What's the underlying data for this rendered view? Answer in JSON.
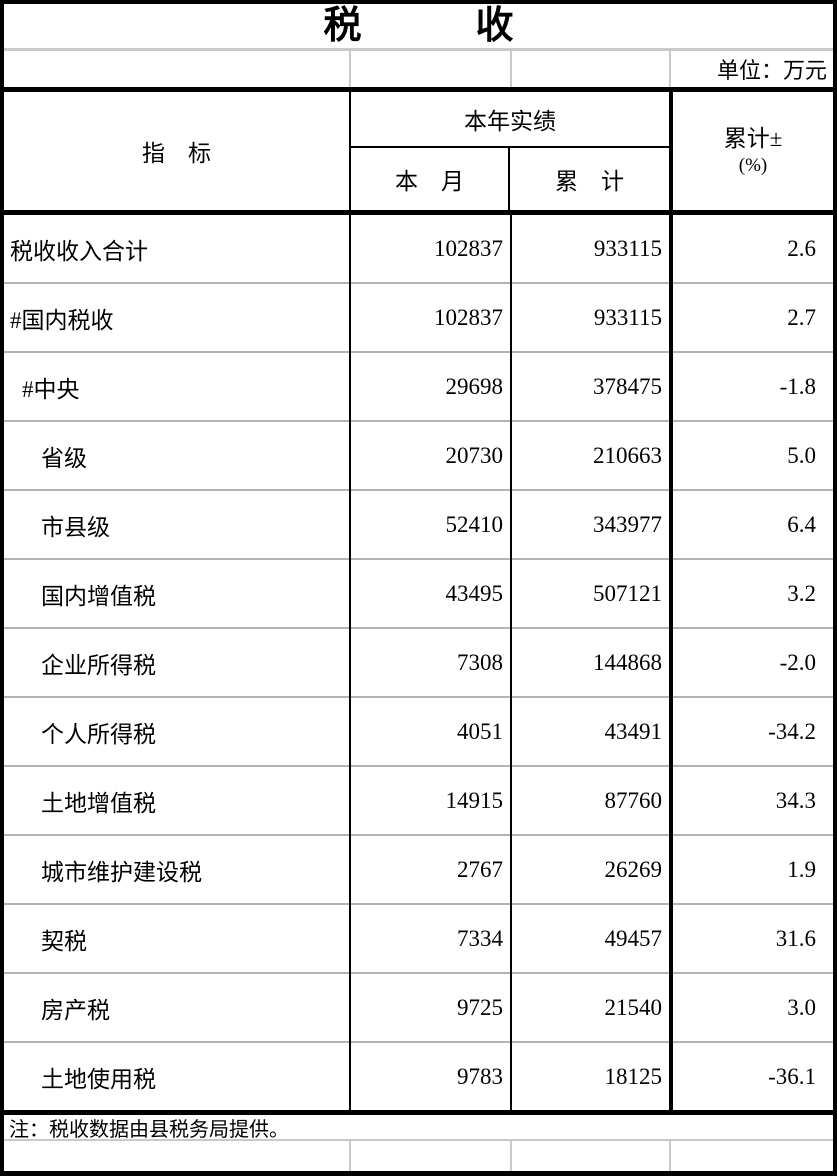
{
  "title": "税　　　收",
  "unit_label": "单位：万元",
  "header": {
    "indicator": "指　标",
    "group": "本年实绩",
    "col_month": "本　月",
    "col_cumulative": "累　计",
    "col_change_line1": "累计±",
    "col_change_line2": "(%)"
  },
  "table": {
    "rows": [
      {
        "label": "税收收入合计",
        "indent": 0,
        "month": "102837",
        "cumulative": "933115",
        "change": "2.6"
      },
      {
        "label": "#国内税收",
        "indent": 0,
        "month": "102837",
        "cumulative": "933115",
        "change": "2.7"
      },
      {
        "label": "#中央",
        "indent": 1,
        "month": "29698",
        "cumulative": "378475",
        "change": "-1.8"
      },
      {
        "label": "省级",
        "indent": 2,
        "month": "20730",
        "cumulative": "210663",
        "change": "5.0"
      },
      {
        "label": "市县级",
        "indent": 2,
        "month": "52410",
        "cumulative": "343977",
        "change": "6.4"
      },
      {
        "label": "国内增值税",
        "indent": 2,
        "month": "43495",
        "cumulative": "507121",
        "change": "3.2"
      },
      {
        "label": "企业所得税",
        "indent": 2,
        "month": "7308",
        "cumulative": "144868",
        "change": "-2.0"
      },
      {
        "label": "个人所得税",
        "indent": 2,
        "month": "4051",
        "cumulative": "43491",
        "change": "-34.2"
      },
      {
        "label": "土地增值税",
        "indent": 2,
        "month": "14915",
        "cumulative": "87760",
        "change": "34.3"
      },
      {
        "label": "城市维护建设税",
        "indent": 2,
        "month": "2767",
        "cumulative": "26269",
        "change": "1.9"
      },
      {
        "label": "契税",
        "indent": 2,
        "month": "7334",
        "cumulative": "49457",
        "change": "31.6"
      },
      {
        "label": "房产税",
        "indent": 2,
        "month": "9725",
        "cumulative": "21540",
        "change": "3.0"
      },
      {
        "label": "土地使用税",
        "indent": 2,
        "month": "9783",
        "cumulative": "18125",
        "change": "-36.1"
      }
    ]
  },
  "note": "注：税收数据由县税务局提供。",
  "colors": {
    "border": "#000000",
    "grid_light": "#c9c9c9",
    "grid_row_divider": "#b3b3b3",
    "background": "#ffffff",
    "text": "#000000"
  }
}
